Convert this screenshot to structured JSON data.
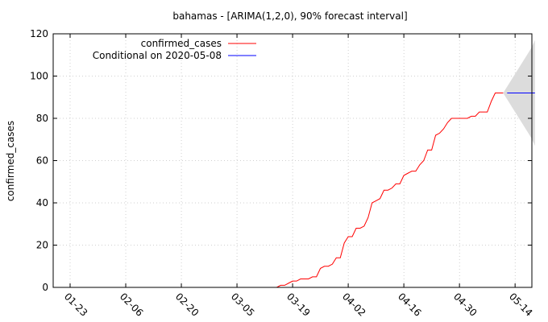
{
  "chart_data": {
    "type": "line",
    "title": "bahamas -  [ARIMA(1,2,0), 90% forecast interval]",
    "xlabel": "",
    "ylabel": "confirmed_cases",
    "x_axis": {
      "ticks": [
        "01-23",
        "02-06",
        "02-20",
        "03-05",
        "03-19",
        "04-02",
        "04-16",
        "04-30",
        "05-14"
      ],
      "start_date": "2020-01-16",
      "end_date": "2020-05-17"
    },
    "ylim": [
      0,
      120
    ],
    "y_ticks": [
      0,
      20,
      40,
      60,
      80,
      100,
      120
    ],
    "grid": true,
    "legend_position": "top-left",
    "legend": [
      {
        "label": "confirmed_cases",
        "color": "#ff0000"
      },
      {
        "label": "Conditional on 2020-05-08",
        "color": "#0000ff"
      }
    ],
    "series": [
      {
        "name": "confirmed_cases",
        "color": "#ff0000",
        "points": [
          [
            "2020-03-15",
            0
          ],
          [
            "2020-03-16",
            1
          ],
          [
            "2020-03-17",
            1
          ],
          [
            "2020-03-18",
            2
          ],
          [
            "2020-03-19",
            3
          ],
          [
            "2020-03-20",
            3
          ],
          [
            "2020-03-21",
            4
          ],
          [
            "2020-03-22",
            4
          ],
          [
            "2020-03-23",
            4
          ],
          [
            "2020-03-24",
            5
          ],
          [
            "2020-03-25",
            5
          ],
          [
            "2020-03-26",
            9
          ],
          [
            "2020-03-27",
            10
          ],
          [
            "2020-03-28",
            10
          ],
          [
            "2020-03-29",
            11
          ],
          [
            "2020-03-30",
            14
          ],
          [
            "2020-03-31",
            14
          ],
          [
            "2020-04-01",
            21
          ],
          [
            "2020-04-02",
            24
          ],
          [
            "2020-04-03",
            24
          ],
          [
            "2020-04-04",
            28
          ],
          [
            "2020-04-05",
            28
          ],
          [
            "2020-04-06",
            29
          ],
          [
            "2020-04-07",
            33
          ],
          [
            "2020-04-08",
            40
          ],
          [
            "2020-04-09",
            41
          ],
          [
            "2020-04-10",
            42
          ],
          [
            "2020-04-11",
            46
          ],
          [
            "2020-04-12",
            46
          ],
          [
            "2020-04-13",
            47
          ],
          [
            "2020-04-14",
            49
          ],
          [
            "2020-04-15",
            49
          ],
          [
            "2020-04-16",
            53
          ],
          [
            "2020-04-17",
            54
          ],
          [
            "2020-04-18",
            55
          ],
          [
            "2020-04-19",
            55
          ],
          [
            "2020-04-20",
            58
          ],
          [
            "2020-04-21",
            60
          ],
          [
            "2020-04-22",
            65
          ],
          [
            "2020-04-23",
            65
          ],
          [
            "2020-04-24",
            72
          ],
          [
            "2020-04-25",
            73
          ],
          [
            "2020-04-26",
            75
          ],
          [
            "2020-04-27",
            78
          ],
          [
            "2020-04-28",
            80
          ],
          [
            "2020-04-29",
            80
          ],
          [
            "2020-04-30",
            80
          ],
          [
            "2020-05-01",
            80
          ],
          [
            "2020-05-02",
            80
          ],
          [
            "2020-05-03",
            81
          ],
          [
            "2020-05-04",
            81
          ],
          [
            "2020-05-05",
            83
          ],
          [
            "2020-05-06",
            83
          ],
          [
            "2020-05-07",
            83
          ],
          [
            "2020-05-08",
            88
          ],
          [
            "2020-05-09",
            92
          ],
          [
            "2020-05-10",
            92
          ],
          [
            "2020-05-11",
            92
          ]
        ]
      },
      {
        "name": "Conditional on 2020-05-08",
        "color": "#0000ff",
        "points": [
          [
            "2020-05-12",
            92
          ],
          [
            "2020-05-13",
            92
          ],
          [
            "2020-05-14",
            92
          ],
          [
            "2020-05-15",
            92
          ],
          [
            "2020-05-16",
            92
          ],
          [
            "2020-05-17",
            92
          ],
          [
            "2020-05-18",
            92
          ],
          [
            "2020-05-19",
            92
          ]
        ]
      }
    ],
    "forecast_interval": {
      "level": "90%",
      "color": "#dcdcdc",
      "points": [
        [
          "2020-05-11",
          92,
          92
        ],
        [
          "2020-05-12",
          89,
          95
        ],
        [
          "2020-05-13",
          86,
          98
        ],
        [
          "2020-05-14",
          83,
          101
        ],
        [
          "2020-05-15",
          80,
          104
        ],
        [
          "2020-05-16",
          77,
          107
        ],
        [
          "2020-05-17",
          74,
          110
        ],
        [
          "2020-05-18",
          71,
          113
        ],
        [
          "2020-05-19",
          67,
          117
        ]
      ]
    }
  }
}
